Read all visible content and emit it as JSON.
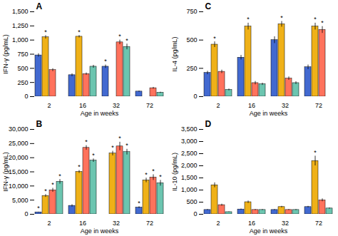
{
  "chart_data": [
    {
      "type": "bar",
      "title": "A",
      "xlabel": "Age in weeks",
      "ylabel": "IFN-γ (pg/mL)",
      "categories": [
        "2",
        "16",
        "32",
        "72"
      ],
      "ylim": [
        0,
        1500
      ],
      "yticks": [
        0,
        250,
        500,
        750,
        {
          "value": 1000,
          "label": "1,000"
        },
        {
          "value": 1250,
          "label": "1,250"
        },
        {
          "value": 1500,
          "label": "1,500"
        }
      ],
      "grid": false,
      "series": [
        {
          "values": [
            730,
            380,
            530,
            90
          ],
          "errors": [
            30,
            25,
            30,
            10
          ],
          "annotations": [
            null,
            null,
            "*",
            null
          ]
        },
        {
          "values": [
            1050,
            1060,
            0,
            0
          ],
          "errors": [
            30,
            20,
            0,
            0
          ],
          "annotations": [
            "*",
            "*",
            null,
            null
          ]
        },
        {
          "values": [
            470,
            400,
            960,
            150
          ],
          "errors": [
            25,
            20,
            40,
            15
          ],
          "annotations": [
            null,
            null,
            "*",
            null
          ]
        },
        {
          "values": [
            0,
            530,
            880,
            70
          ],
          "errors": [
            0,
            25,
            50,
            10
          ],
          "annotations": [
            null,
            null,
            "*",
            null
          ]
        }
      ]
    },
    {
      "type": "bar",
      "title": "C",
      "xlabel": "Age in weeks",
      "ylabel": "IL-4 (pg/mL)",
      "categories": [
        "2",
        "16",
        "32",
        "72"
      ],
      "ylim": [
        0,
        750
      ],
      "yticks": [
        0,
        250,
        500,
        750
      ],
      "grid": false,
      "series": [
        {
          "values": [
            210,
            345,
            500,
            260
          ],
          "errors": [
            15,
            20,
            30,
            20
          ],
          "annotations": [
            null,
            null,
            null,
            null
          ]
        },
        {
          "values": [
            460,
            620,
            640,
            620
          ],
          "errors": [
            25,
            30,
            25,
            30
          ],
          "annotations": [
            "*",
            "*",
            "*",
            "*"
          ]
        },
        {
          "values": [
            220,
            120,
            160,
            590
          ],
          "errors": [
            15,
            15,
            15,
            30
          ],
          "annotations": [
            null,
            null,
            null,
            "*"
          ]
        },
        {
          "values": [
            60,
            110,
            120,
            0
          ],
          "errors": [
            8,
            10,
            12,
            0
          ],
          "annotations": [
            null,
            null,
            null,
            null
          ]
        }
      ]
    },
    {
      "type": "bar",
      "title": "B",
      "xlabel": "Age in weeks",
      "ylabel": "IFN-γ (pg/mL)",
      "categories": [
        "2",
        "16",
        "32",
        "72"
      ],
      "ylim": [
        0,
        30000
      ],
      "yticks": [
        0,
        {
          "value": 5000,
          "label": "5,000"
        },
        {
          "value": 10000,
          "label": "10,000"
        },
        {
          "value": 15000,
          "label": "15,000"
        },
        {
          "value": 20000,
          "label": "20,000"
        },
        {
          "value": 25000,
          "label": "25,000"
        },
        {
          "value": 30000,
          "label": "30,000"
        }
      ],
      "grid": false,
      "series": [
        {
          "values": [
            700,
            3000,
            0,
            2400
          ],
          "errors": [
            80,
            400,
            0,
            300
          ],
          "annotations": [
            "*",
            null,
            null,
            "*"
          ]
        },
        {
          "values": [
            6500,
            15000,
            21500,
            12000
          ],
          "errors": [
            500,
            500,
            800,
            800
          ],
          "annotations": [
            "*",
            "*",
            "*",
            "*"
          ]
        },
        {
          "values": [
            8500,
            23500,
            24000,
            13000
          ],
          "errors": [
            700,
            800,
            1500,
            1000
          ],
          "annotations": [
            "*",
            "*",
            "*",
            "*"
          ]
        },
        {
          "values": [
            11500,
            19000,
            22000,
            11000
          ],
          "errors": [
            800,
            600,
            1000,
            1000
          ],
          "annotations": [
            "*",
            "*",
            "*",
            "*"
          ]
        }
      ]
    },
    {
      "type": "bar",
      "title": "D",
      "xlabel": "Age in weeks",
      "ylabel": "IL-10 (pg/mL)",
      "categories": [
        "2",
        "16",
        "32",
        "72"
      ],
      "ylim": [
        0,
        3500
      ],
      "yticks": [
        0,
        500,
        {
          "value": 1000,
          "label": "1,000"
        },
        {
          "value": 1500,
          "label": "1,500"
        },
        {
          "value": 2000,
          "label": "2,000"
        },
        {
          "value": 2500,
          "label": "2,500"
        },
        {
          "value": 3000,
          "label": "3,000"
        },
        {
          "value": 3500,
          "label": "3,500"
        }
      ],
      "grid": false,
      "series": [
        {
          "values": [
            180,
            200,
            180,
            300
          ],
          "errors": [
            20,
            20,
            20,
            30
          ],
          "annotations": [
            null,
            null,
            null,
            null
          ]
        },
        {
          "values": [
            1200,
            500,
            300,
            2200
          ],
          "errors": [
            100,
            50,
            30,
            200
          ],
          "annotations": [
            null,
            null,
            null,
            "*"
          ]
        },
        {
          "values": [
            380,
            180,
            180,
            580
          ],
          "errors": [
            40,
            20,
            20,
            60
          ],
          "annotations": [
            null,
            null,
            null,
            null
          ]
        },
        {
          "values": [
            90,
            180,
            180,
            240
          ],
          "errors": [
            10,
            20,
            20,
            25
          ],
          "annotations": [
            null,
            null,
            null,
            null
          ]
        }
      ]
    }
  ]
}
